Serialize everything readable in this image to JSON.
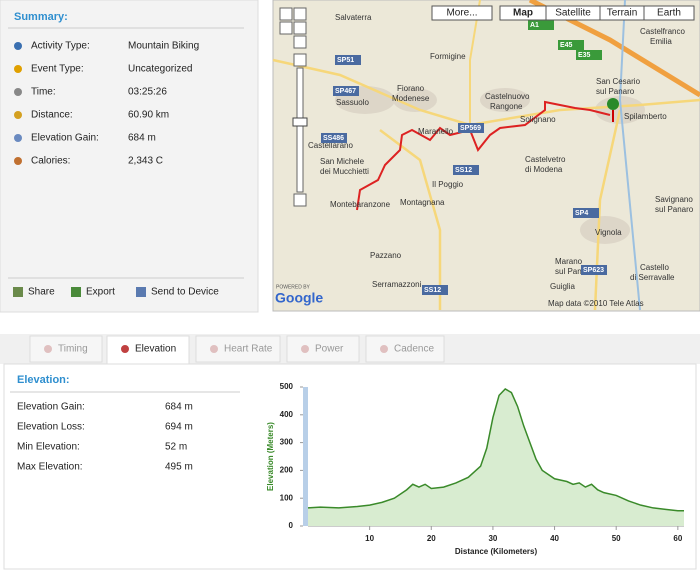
{
  "summary": {
    "title": "Summary:",
    "rows": [
      {
        "label": "Activity Type:",
        "value": "Mountain Biking"
      },
      {
        "label": "Event Type:",
        "value": "Uncategorized"
      },
      {
        "label": "Time:",
        "value": "03:25:26"
      },
      {
        "label": "Distance:",
        "value": "60.90 km"
      },
      {
        "label": "Elevation Gain:",
        "value": "684 m"
      },
      {
        "label": "Calories:",
        "value": "2,343 C"
      }
    ],
    "actions": [
      "Share",
      "Export",
      "Send to Device"
    ]
  },
  "map": {
    "buttons": [
      "More...",
      "Map",
      "Satellite",
      "Terrain",
      "Earth"
    ],
    "labels": [
      "Salvaterra",
      "Formigine",
      "Sassuolo",
      "Fiorano",
      "Modenese",
      "Castelnuovo",
      "Rangone",
      "Maranello",
      "Castellarano",
      "San Michele",
      "dei Mucchietti",
      "Montebaranzone",
      "Montagnana",
      "Il Poggio",
      "Castelvetro",
      "di Modena",
      "Solignano",
      "Vignola",
      "Marano",
      "sul Panaro",
      "Guiglia",
      "Serramazzoni",
      "Pazzano",
      "San Cesario",
      "sul Panaro",
      "Spilamberto",
      "Savignano",
      "sul Panaro",
      "Castello",
      "di Serravalle",
      "Castelfranco",
      "Emilia"
    ],
    "roads": [
      "SP467",
      "SP569",
      "SS12",
      "SP4",
      "SP623",
      "SS486",
      "SP51",
      "E45",
      "A1",
      "E35",
      "SS12"
    ],
    "powered": "POWERED BY",
    "logo": "Google",
    "attribution": "Map data ©2010 Tele Atlas"
  },
  "tabs": [
    "Timing",
    "Elevation",
    "Heart Rate",
    "Power",
    "Cadence"
  ],
  "elevation": {
    "title": "Elevation:",
    "rows": [
      {
        "label": "Elevation Gain:",
        "value": "684 m"
      },
      {
        "label": "Elevation Loss:",
        "value": "694 m"
      },
      {
        "label": "Min Elevation:",
        "value": "52 m"
      },
      {
        "label": "Max Elevation:",
        "value": "495 m"
      }
    ]
  },
  "chart_data": {
    "type": "area",
    "x": [
      0,
      2,
      5,
      8,
      10,
      12,
      14,
      16,
      17,
      18,
      19,
      20,
      22,
      24,
      26,
      28,
      29,
      30,
      31,
      32,
      33,
      34,
      35,
      36,
      37,
      38,
      40,
      42,
      43,
      44,
      45,
      46,
      47,
      48,
      50,
      52,
      54,
      56,
      58,
      60,
      61
    ],
    "values": [
      65,
      68,
      65,
      70,
      75,
      85,
      100,
      130,
      150,
      140,
      150,
      135,
      140,
      155,
      175,
      215,
      280,
      390,
      470,
      493,
      480,
      430,
      360,
      300,
      240,
      200,
      170,
      160,
      150,
      155,
      140,
      150,
      130,
      120,
      110,
      90,
      75,
      65,
      60,
      55,
      55
    ],
    "xlim": [
      0,
      61
    ],
    "ylim": [
      0,
      500
    ],
    "xticks": [
      10,
      20,
      30,
      40,
      50,
      60
    ],
    "yticks": [
      0,
      100,
      200,
      300,
      400,
      500
    ],
    "xlabel": "Distance (Kilometers)",
    "ylabel": "Elevation (Meters)",
    "color": "#3a8a2a",
    "fill": "#d8ecd0"
  }
}
